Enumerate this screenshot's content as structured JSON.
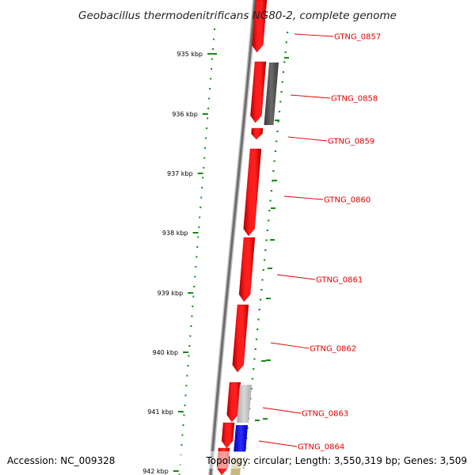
{
  "title": "Geobacillus thermodenitrificans NG80-2, complete genome",
  "footer": {
    "accession": "Accession: NC_009328",
    "summary": "Topology: circular; Length: 3,550,319 bp; Genes: 3,509"
  },
  "ticks": [
    "935 kbp",
    "936 kbp",
    "937 kbp",
    "938 kbp",
    "939 kbp",
    "940 kbp",
    "941 kbp",
    "942 kbp"
  ],
  "genes": [
    {
      "label": "GTNG_0857",
      "strand": "forward",
      "color": "#ff0000"
    },
    {
      "label": "GTNG_0858",
      "strand": "forward",
      "color": "#ff0000"
    },
    {
      "label": "GTNG_0859",
      "strand": "forward",
      "color": "#ff0000"
    },
    {
      "label": "GTNG_0860",
      "strand": "forward",
      "color": "#ff0000"
    },
    {
      "label": "GTNG_0861",
      "strand": "forward",
      "color": "#ff0000"
    },
    {
      "label": "GTNG_0862",
      "strand": "forward",
      "color": "#ff0000"
    },
    {
      "label": "GTNG_0863",
      "strand": "forward",
      "color": "#ff0000"
    },
    {
      "label": "GTNG_0864",
      "strand": "forward",
      "color": "#ff0000"
    }
  ],
  "colors": {
    "cds": "#ff0000",
    "backbone": "#707070",
    "gc_dots": "#138a13",
    "label": "#e00000",
    "gray_feature": "#555555",
    "light_gray_feature": "#c8c8c8",
    "blue_feature": "#1010ee",
    "tan_feature": "#c8b880"
  }
}
